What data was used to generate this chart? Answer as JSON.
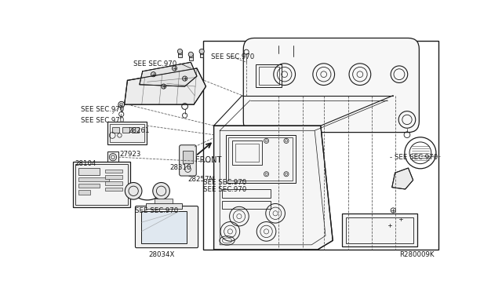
{
  "bg_color": "#ffffff",
  "lc": "#1a1a1a",
  "tc": "#1a1a1a",
  "fw": 6.4,
  "fh": 3.72,
  "dpi": 100,
  "diagram_code": "R280009K",
  "labels": {
    "sec970_tl": "SEE SEC.970",
    "sec970_tc": "SEE SEC.970",
    "sec970_l1": "SEE SEC.970",
    "sec970_l2": "SEE SEC.970",
    "sec970_m1": "SEE SEC.970",
    "sec970_m2": "SEE SEC.970",
    "sec970_r": "- SEE SEC.970",
    "p28261": "28261",
    "p28257M": "28257M",
    "p27923": "27923",
    "p28104": "28104",
    "p28310": "28310",
    "p28034X": "28034X",
    "psee": "SEE SEC.970",
    "front": "FRONT"
  }
}
